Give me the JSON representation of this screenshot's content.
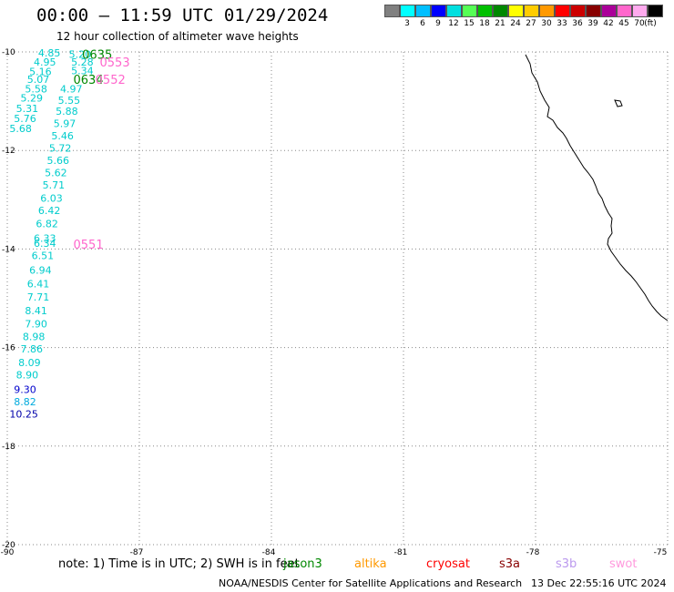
{
  "header": {
    "title": "00:00 – 11:59 UTC 01/29/2024",
    "subtitle": "12 hour collection of altimeter wave heights"
  },
  "legend": {
    "unit": "(ft)",
    "items": [
      {
        "label": "",
        "color": "#808080"
      },
      {
        "label": "3",
        "color": "#00ffff"
      },
      {
        "label": "6",
        "color": "#00bfff"
      },
      {
        "label": "9",
        "color": "#0000ff"
      },
      {
        "label": "12",
        "color": "#00dfdf"
      },
      {
        "label": "15",
        "color": "#55ff55"
      },
      {
        "label": "18",
        "color": "#00c000"
      },
      {
        "label": "21",
        "color": "#008800"
      },
      {
        "label": "24",
        "color": "#ffff00"
      },
      {
        "label": "27",
        "color": "#ffcc00"
      },
      {
        "label": "30",
        "color": "#ff9900"
      },
      {
        "label": "33",
        "color": "#ff0000"
      },
      {
        "label": "36",
        "color": "#cc0000"
      },
      {
        "label": "39",
        "color": "#880000"
      },
      {
        "label": "42",
        "color": "#aa0099"
      },
      {
        "label": "45",
        "color": "#ff66cc"
      },
      {
        "label": "70",
        "color": "#ffaaee"
      },
      {
        "label": "",
        "color": "#000000"
      }
    ]
  },
  "map": {
    "lon_range": [
      -90,
      -75
    ],
    "lat_range": [
      -20,
      -10
    ],
    "lon_ticks": [
      "-90",
      "-87",
      "-84",
      "-81",
      "-78",
      "-75"
    ],
    "lat_ticks": [
      "-10",
      "-12",
      "-14",
      "-16",
      "-18",
      "-20"
    ]
  },
  "track_labels": [
    {
      "text": "0635",
      "color": "#008800",
      "lon": -88.3,
      "lat": -10.05
    },
    {
      "text": "0553",
      "color": "#ff66cc",
      "lon": -87.9,
      "lat": -10.2
    },
    {
      "text": "0634",
      "color": "#008800",
      "lon": -88.5,
      "lat": -10.55
    },
    {
      "text": "0552",
      "color": "#ff66cc",
      "lon": -88.0,
      "lat": -10.55
    },
    {
      "text": "0551",
      "color": "#ff66cc",
      "lon": -88.5,
      "lat": -13.9
    }
  ],
  "wave_heights": [
    {
      "text": "4.85",
      "color": "#00cccc",
      "lon": -89.3,
      "lat": -10.02
    },
    {
      "text": "5.20",
      "color": "#00cccc",
      "lon": -88.6,
      "lat": -10.05
    },
    {
      "text": "4.95",
      "color": "#00cccc",
      "lon": -89.4,
      "lat": -10.2
    },
    {
      "text": "5.28",
      "color": "#00cccc",
      "lon": -88.55,
      "lat": -10.2
    },
    {
      "text": "5.16",
      "color": "#00cccc",
      "lon": -89.5,
      "lat": -10.4
    },
    {
      "text": "5.34",
      "color": "#00cccc",
      "lon": -88.55,
      "lat": -10.38
    },
    {
      "text": "5.07",
      "color": "#00cccc",
      "lon": -89.55,
      "lat": -10.55
    },
    {
      "text": "4.97",
      "color": "#00cccc",
      "lon": -88.8,
      "lat": -10.75
    },
    {
      "text": "5.58",
      "color": "#00cccc",
      "lon": -89.6,
      "lat": -10.75
    },
    {
      "text": "5.29",
      "color": "#00cccc",
      "lon": -89.7,
      "lat": -10.93
    },
    {
      "text": "5.55",
      "color": "#00cccc",
      "lon": -88.85,
      "lat": -10.98
    },
    {
      "text": "5.31",
      "color": "#00cccc",
      "lon": -89.8,
      "lat": -11.15
    },
    {
      "text": "5.88",
      "color": "#00cccc",
      "lon": -88.9,
      "lat": -11.2
    },
    {
      "text": "5.76",
      "color": "#00cccc",
      "lon": -89.85,
      "lat": -11.35
    },
    {
      "text": "5.97",
      "color": "#00cccc",
      "lon": -88.95,
      "lat": -11.45
    },
    {
      "text": "5.68",
      "color": "#00cccc",
      "lon": -89.95,
      "lat": -11.55
    },
    {
      "text": "5.46",
      "color": "#00cccc",
      "lon": -89.0,
      "lat": -11.7
    },
    {
      "text": "5.72",
      "color": "#00cccc",
      "lon": -89.05,
      "lat": -11.95
    },
    {
      "text": "5.66",
      "color": "#00cccc",
      "lon": -89.1,
      "lat": -12.2
    },
    {
      "text": "5.62",
      "color": "#00cccc",
      "lon": -89.15,
      "lat": -12.45
    },
    {
      "text": "5.71",
      "color": "#00cccc",
      "lon": -89.2,
      "lat": -12.7
    },
    {
      "text": "6.03",
      "color": "#00cccc",
      "lon": -89.25,
      "lat": -12.97
    },
    {
      "text": "6.42",
      "color": "#00cccc",
      "lon": -89.3,
      "lat": -13.22
    },
    {
      "text": "6.82",
      "color": "#00cccc",
      "lon": -89.35,
      "lat": -13.48
    },
    {
      "text": "6.33",
      "color": "#00cccc",
      "lon": -89.4,
      "lat": -13.78
    },
    {
      "text": "6.34",
      "color": "#00cccc",
      "lon": -89.4,
      "lat": -13.88
    },
    {
      "text": "6.51",
      "color": "#00cccc",
      "lon": -89.45,
      "lat": -14.13
    },
    {
      "text": "6.94",
      "color": "#00cccc",
      "lon": -89.5,
      "lat": -14.43
    },
    {
      "text": "6.41",
      "color": "#00cccc",
      "lon": -89.55,
      "lat": -14.7
    },
    {
      "text": "7.71",
      "color": "#00cccc",
      "lon": -89.55,
      "lat": -14.97
    },
    {
      "text": "8.41",
      "color": "#00cccc",
      "lon": -89.6,
      "lat": -15.25
    },
    {
      "text": "7.90",
      "color": "#00cccc",
      "lon": -89.6,
      "lat": -15.52
    },
    {
      "text": "8.98",
      "color": "#00cccc",
      "lon": -89.65,
      "lat": -15.78
    },
    {
      "text": "7.86",
      "color": "#00cccc",
      "lon": -89.7,
      "lat": -16.03
    },
    {
      "text": "8.09",
      "color": "#00cccc",
      "lon": -89.75,
      "lat": -16.3
    },
    {
      "text": "8.90",
      "color": "#00cccc",
      "lon": -89.8,
      "lat": -16.55
    },
    {
      "text": "9.30",
      "color": "#0000cc",
      "lon": -89.85,
      "lat": -16.85
    },
    {
      "text": "8.82",
      "color": "#00aadd",
      "lon": -89.85,
      "lat": -17.1
    },
    {
      "text": "10.25",
      "color": "#0000aa",
      "lon": -89.95,
      "lat": -17.35
    }
  ],
  "notes": {
    "note_text": "note:  1) Time is in UTC;  2) SWH is in feet",
    "satellites": [
      {
        "name": "jason3",
        "color": "#008800"
      },
      {
        "name": "altika",
        "color": "#ff9900"
      },
      {
        "name": "cryosat",
        "color": "#ff0000"
      },
      {
        "name": "s3a",
        "color": "#880000"
      },
      {
        "name": "s3b",
        "color": "#bb99ee"
      },
      {
        "name": "swot",
        "color": "#ff99dd"
      }
    ]
  },
  "footer": {
    "credit": "NOAA/NESDIS Center for Satellite Applications and Research",
    "timestamp": "13 Dec 22:55:16 UTC 2024"
  }
}
